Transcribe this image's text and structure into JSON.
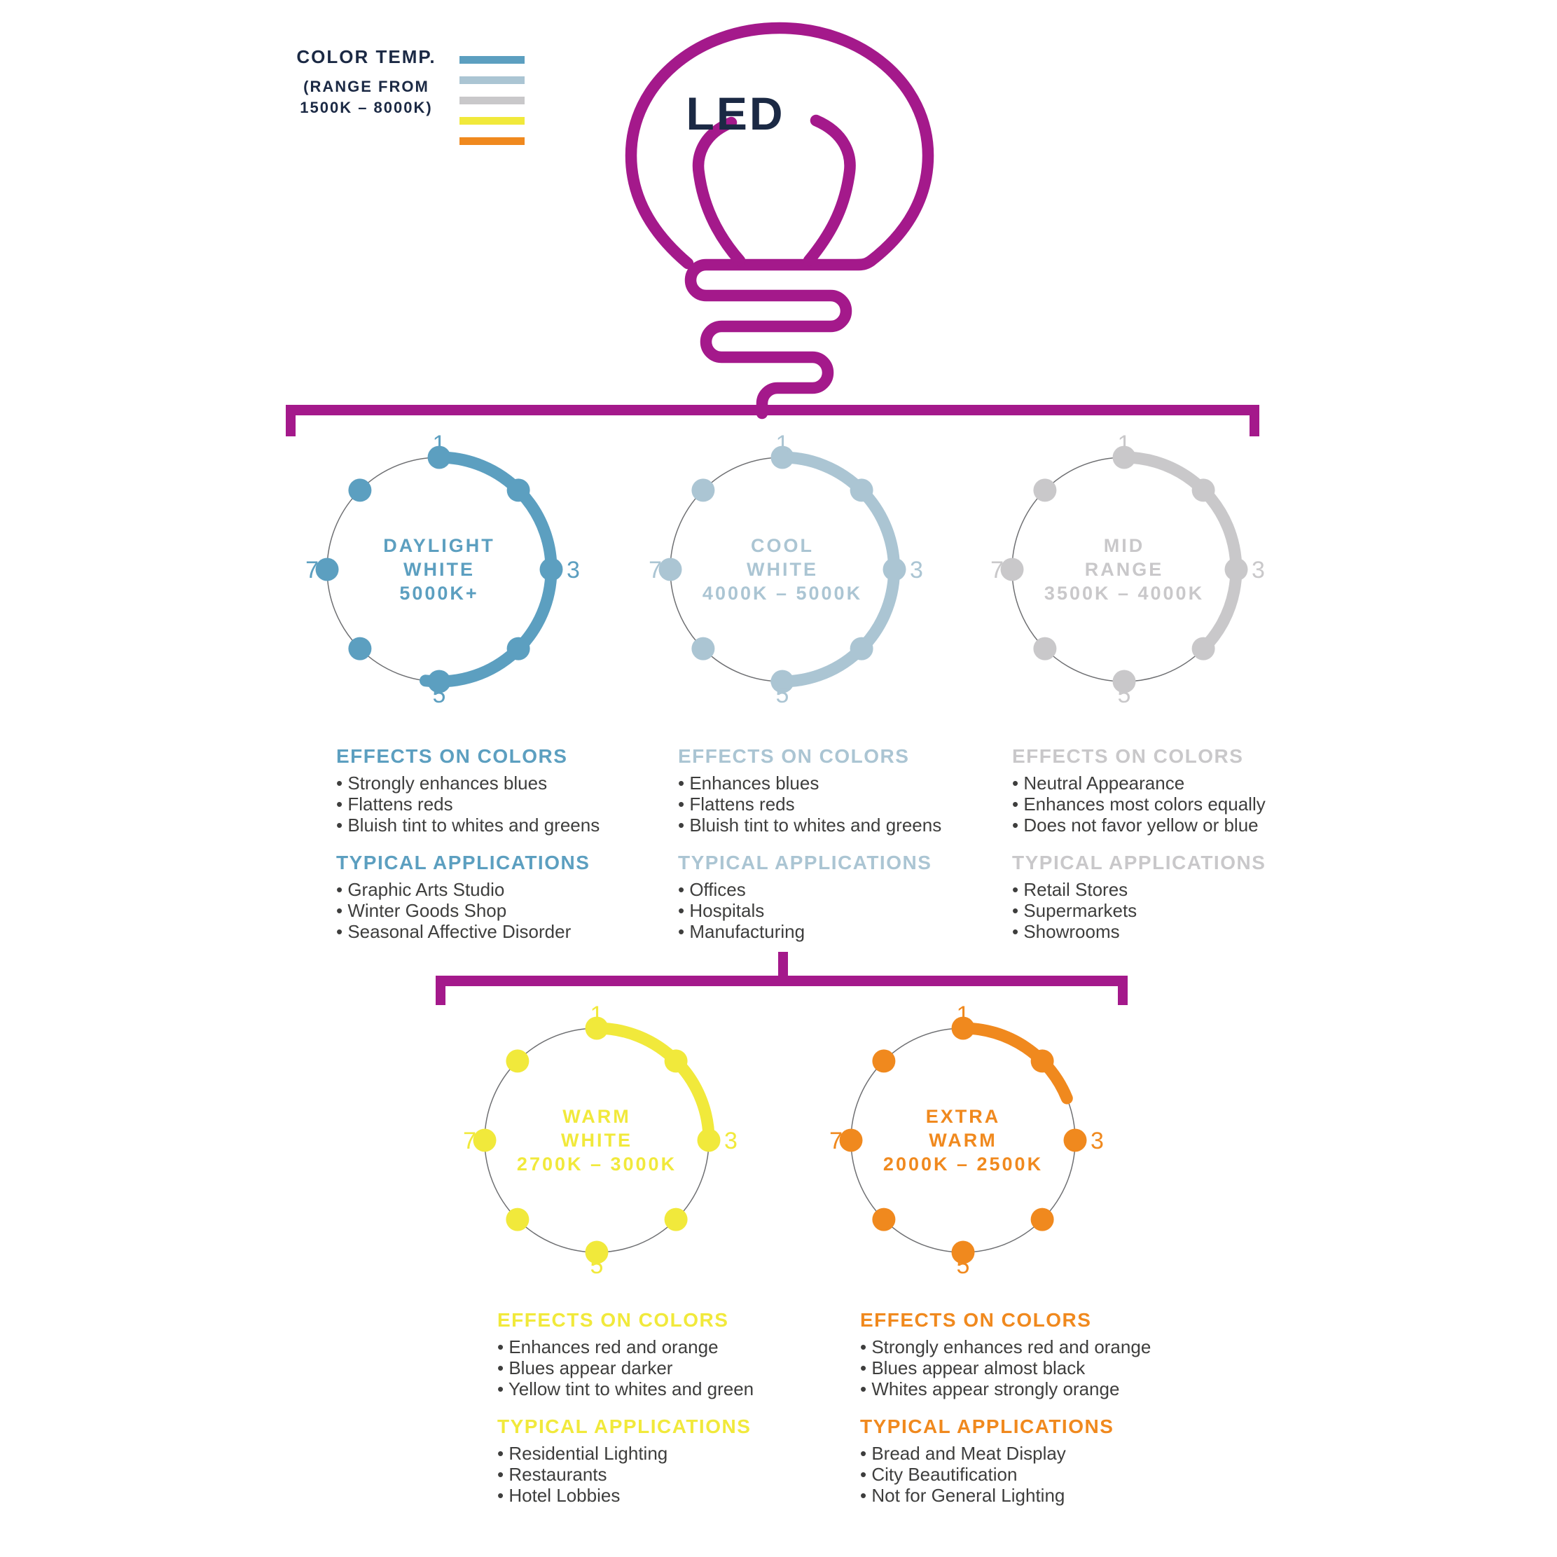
{
  "palette": {
    "magenta": "#A4198B",
    "navy": "#1B2944",
    "body_text": "#3E3E3D",
    "ring_gray": "#6E6F72"
  },
  "legend": {
    "title": "COLOR TEMP.",
    "subtitle_line1": "(RANGE FROM",
    "subtitle_line2": "1500K – 8000K)",
    "colors": [
      "#5C9FC0",
      "#ABC5D3",
      "#C9C8CA",
      "#F1E93B",
      "#F0891E"
    ]
  },
  "bulb": {
    "label": "LED",
    "outline_color": "#A4198B",
    "label_color": "#1B2944"
  },
  "scale_numbers": [
    "1",
    "3",
    "5",
    "7"
  ],
  "groups": [
    {
      "id": "daylight-white",
      "title_lines": [
        "DAYLIGHT",
        "WHITE",
        "5000K+"
      ],
      "color": "#5C9FC0",
      "arc_end_deg": 187,
      "effects_title": "EFFECTS ON COLORS",
      "effects": [
        "Strongly enhances blues",
        "Flattens reds",
        "Bluish tint to whites and greens"
      ],
      "applications_title": "TYPICAL APPLICATIONS",
      "applications": [
        "Graphic Arts Studio",
        "Winter Goods Shop",
        "Seasonal Affective Disorder"
      ]
    },
    {
      "id": "cool-white",
      "title_lines": [
        "COOL",
        "WHITE",
        "4000K – 5000K"
      ],
      "color": "#ABC5D3",
      "arc_end_deg": 183,
      "effects_title": "EFFECTS ON COLORS",
      "effects": [
        "Enhances blues",
        "Flattens reds",
        "Bluish tint to whites and greens"
      ],
      "applications_title": "TYPICAL APPLICATIONS",
      "applications": [
        "Offices",
        "Hospitals",
        "Manufacturing"
      ]
    },
    {
      "id": "mid-range",
      "title_lines": [
        "MID",
        "RANGE",
        "3500K – 4000K"
      ],
      "color": "#C9C8CA",
      "arc_end_deg": 135,
      "effects_title": "EFFECTS ON COLORS",
      "effects": [
        "Neutral Appearance",
        "Enhances most colors equally",
        "Does not favor yellow or blue"
      ],
      "applications_title": "TYPICAL APPLICATIONS",
      "applications": [
        "Retail Stores",
        "Supermarkets",
        "Showrooms"
      ]
    },
    {
      "id": "warm-white",
      "title_lines": [
        "WARM",
        "WHITE",
        "2700K – 3000K"
      ],
      "color": "#F1E93B",
      "arc_end_deg": 91,
      "effects_title": "EFFECTS ON COLORS",
      "effects": [
        "Enhances red and orange",
        "Blues appear darker",
        "Yellow tint to whites and green"
      ],
      "applications_title": "TYPICAL APPLICATIONS",
      "applications": [
        "Residential Lighting",
        "Restaurants",
        "Hotel Lobbies"
      ]
    },
    {
      "id": "extra-warm",
      "title_lines": [
        "EXTRA",
        "WARM",
        "2000K – 2500K"
      ],
      "color": "#F0891E",
      "arc_end_deg": 68,
      "effects_title": "EFFECTS ON COLORS",
      "effects": [
        "Strongly enhances red and orange",
        "Blues appear almost black",
        "Whites appear strongly orange"
      ],
      "applications_title": "TYPICAL APPLICATIONS",
      "applications": [
        "Bread and Meat Display",
        "City Beautification",
        "Not for General Lighting"
      ]
    }
  ]
}
